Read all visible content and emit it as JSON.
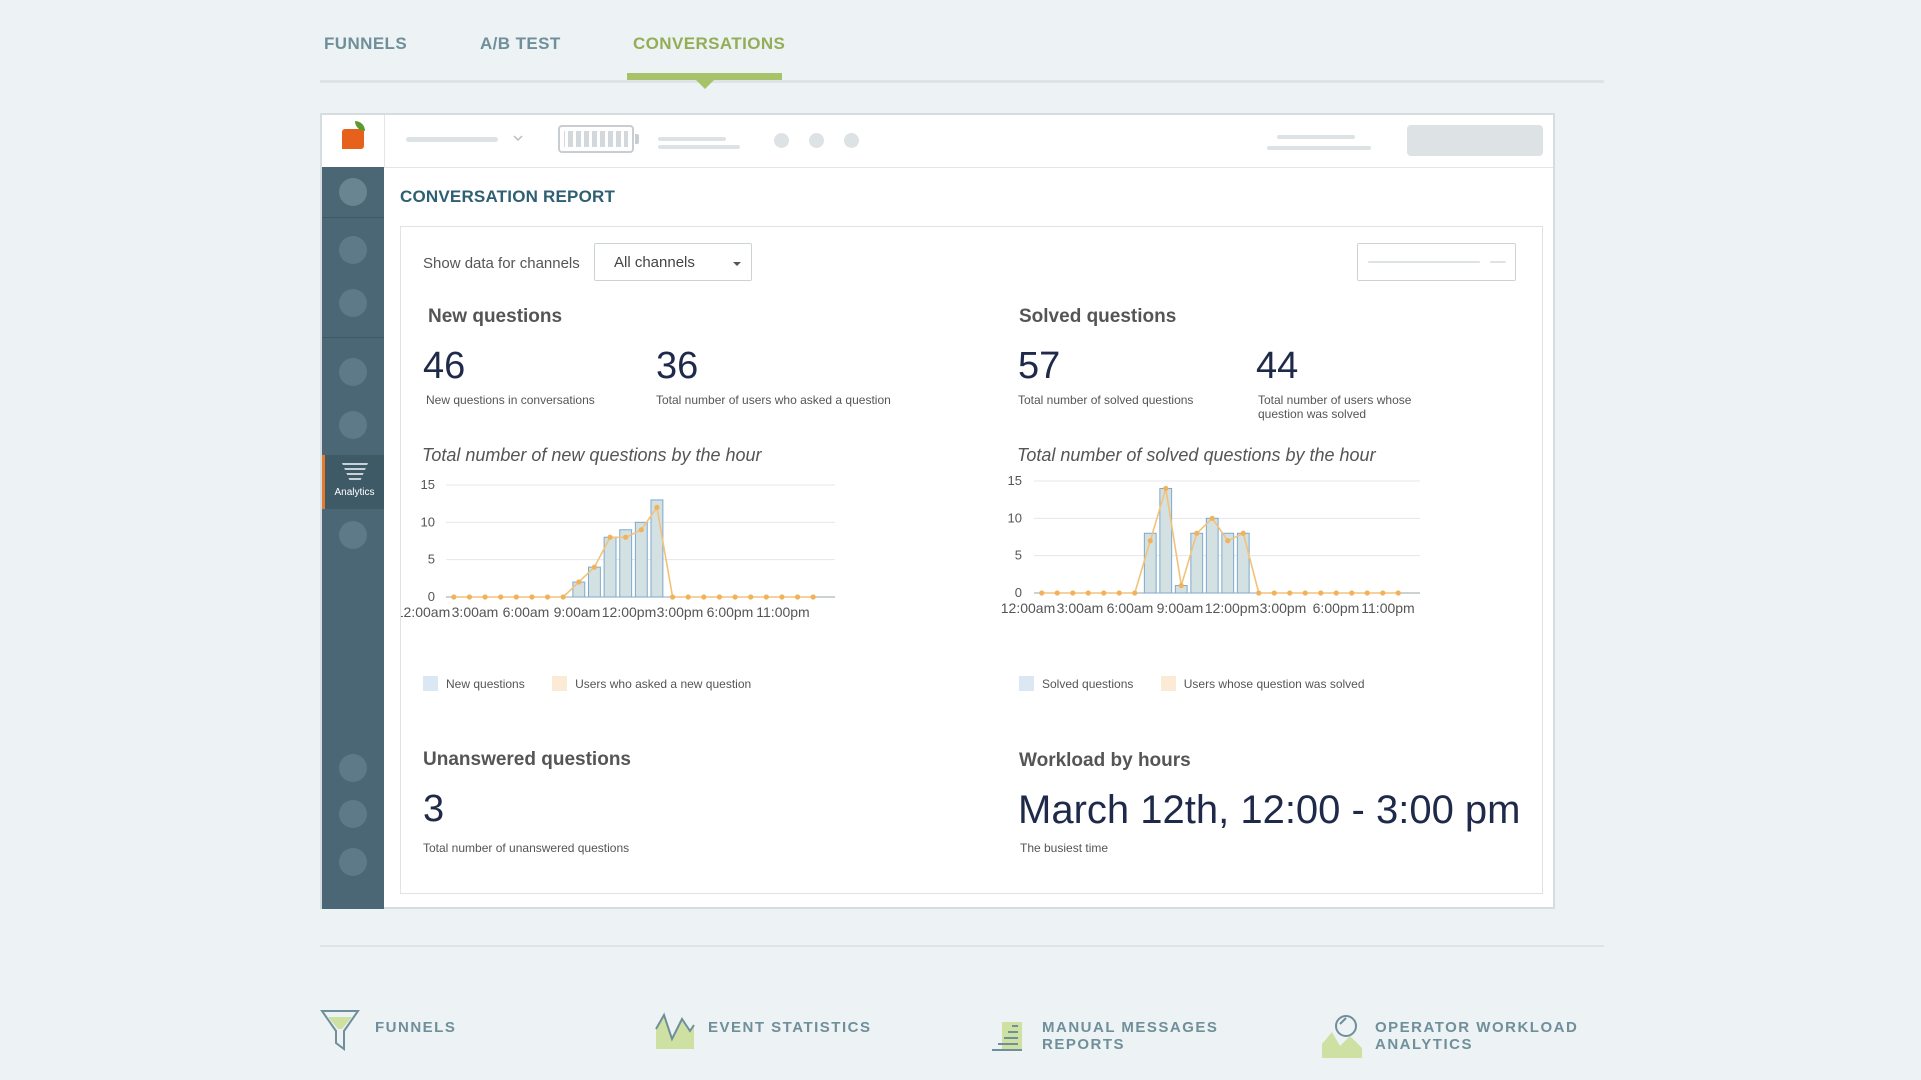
{
  "tabs": [
    {
      "label": "FUNNELS",
      "active": false
    },
    {
      "label": "A/B TEST",
      "active": false
    },
    {
      "label": "CONVERSATIONS",
      "active": true
    }
  ],
  "sidebar": {
    "active_label": "Analytics"
  },
  "report": {
    "title": "CONVERSATION REPORT",
    "filter_label": "Show data for channels",
    "channel_select": "All channels"
  },
  "new_questions": {
    "heading": "New questions",
    "stat1_value": "46",
    "stat1_label": "New questions in conversations",
    "stat2_value": "36",
    "stat2_label": "Total number of users who asked a question",
    "chart_title": "Total number of new questions by the hour"
  },
  "solved_questions": {
    "heading": "Solved questions",
    "stat1_value": "57",
    "stat1_label": "Total number of solved questions",
    "stat2_value": "44",
    "stat2_label": "Total number of users whose question was solved",
    "chart_title": "Total number of solved questions by the hour"
  },
  "unanswered": {
    "heading": "Unanswered questions",
    "value": "3",
    "label": "Total number of unanswered questions"
  },
  "workload": {
    "heading": "Workload by hours",
    "value": "March 12th, 12:00 - 3:00 pm",
    "label": "The busiest time"
  },
  "features": [
    {
      "label": "FUNNELS",
      "icon": "funnel-icon"
    },
    {
      "label": "EVENT STATISTICS",
      "icon": "event-chart-icon"
    },
    {
      "label": "MANUAL MESSAGES REPORTS",
      "icon": "messages-report-icon"
    },
    {
      "label": "OPERATOR WORKLOAD ANALYTICS",
      "icon": "operator-workload-icon"
    }
  ],
  "colors": {
    "accent": "#94ad56",
    "bar_fill": "#d4e1e3",
    "bar_stroke": "#7ea9cc",
    "line": "#f3c27a",
    "sidebar": "#4b6775"
  },
  "chart_data": [
    {
      "type": "bar",
      "title": "Total number of new questions by the hour",
      "x_ticks": [
        "12:00am",
        "3:00am",
        "6:00am",
        "9:00am",
        "12:00pm",
        "3:00pm",
        "6:00pm",
        "11:00pm"
      ],
      "ylim": [
        0,
        15
      ],
      "y_ticks": [
        0,
        5,
        10,
        15
      ],
      "categories": [
        "0",
        "1",
        "2",
        "3",
        "4",
        "5",
        "6",
        "7",
        "8",
        "9",
        "10",
        "11",
        "12",
        "13",
        "14",
        "15",
        "16",
        "17",
        "18",
        "19",
        "20",
        "21",
        "22",
        "23"
      ],
      "series": [
        {
          "name": "New questions",
          "type": "bar",
          "values": [
            0,
            0,
            0,
            0,
            0,
            0,
            0,
            0,
            2,
            4,
            8,
            9,
            10,
            13,
            0,
            0,
            0,
            0,
            0,
            0,
            0,
            0,
            0,
            0
          ]
        },
        {
          "name": "Users who asked a new question",
          "type": "line",
          "values": [
            0,
            0,
            0,
            0,
            0,
            0,
            0,
            0,
            2,
            4,
            8,
            8,
            9,
            12,
            0,
            0,
            0,
            0,
            0,
            0,
            0,
            0,
            0,
            0
          ]
        }
      ],
      "grid": true,
      "legend": "bottom-left"
    },
    {
      "type": "bar",
      "title": "Total number of solved questions by the hour",
      "x_ticks": [
        "12:00am",
        "3:00am",
        "6:00am",
        "9:00am",
        "12:00pm",
        "3:00pm",
        "6:00pm",
        "11:00pm"
      ],
      "ylim": [
        0,
        15
      ],
      "y_ticks": [
        0,
        5,
        10,
        15
      ],
      "categories": [
        "0",
        "1",
        "2",
        "3",
        "4",
        "5",
        "6",
        "7",
        "8",
        "9",
        "10",
        "11",
        "12",
        "13",
        "14",
        "15",
        "16",
        "17",
        "18",
        "19",
        "20",
        "21",
        "22",
        "23"
      ],
      "series": [
        {
          "name": "Solved questions",
          "type": "bar",
          "values": [
            0,
            0,
            0,
            0,
            0,
            0,
            0,
            8,
            14,
            1,
            8,
            10,
            8,
            8,
            0,
            0,
            0,
            0,
            0,
            0,
            0,
            0,
            0,
            0
          ]
        },
        {
          "name": "Users whose question was solved",
          "type": "line",
          "values": [
            0,
            0,
            0,
            0,
            0,
            0,
            0,
            7,
            14,
            1,
            8,
            10,
            7,
            8,
            0,
            0,
            0,
            0,
            0,
            0,
            0,
            0,
            0,
            0
          ]
        }
      ],
      "grid": true,
      "legend": "bottom-left"
    }
  ]
}
